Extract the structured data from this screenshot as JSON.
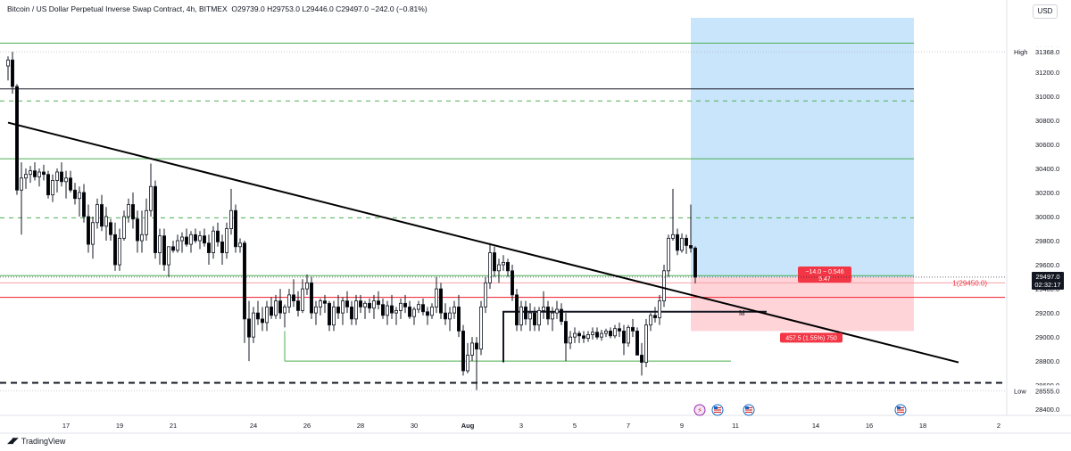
{
  "header": {
    "symbol": "Bitcoin / US Dollar Perpetual Inverse Swap Contract",
    "interval": "4h",
    "exchange": "BITMEX",
    "ohlc": "O29739.0  H29753.0  L29446.0  C29497.0  −242.0 (−0.81%)"
  },
  "currency_button": "USD",
  "branding": "TradingView",
  "colors": {
    "up_candle": "#ffffff",
    "down_candle": "#000000",
    "green_level": "#4caf50",
    "red_level": "#f23645",
    "target_zone": "#bbdefb",
    "stop_zone": "#ffcdd2",
    "trendline": "#000000"
  },
  "chart_data": {
    "type": "candlestick",
    "title": "Bitcoin / US Dollar Perpetual Inverse Swap Contract, 4h, BITMEX",
    "xlabel": "",
    "ylabel": "USD",
    "ylim": [
      28350,
      31650
    ],
    "y_ticks": [
      "31400.0",
      "31200.0",
      "31000.0",
      "30800.0",
      "30600.0",
      "30400.0",
      "30200.0",
      "30000.0",
      "29800.0",
      "29600.0",
      "29400.0",
      "29200.0",
      "29000.0",
      "28800.0",
      "28600.0",
      "28400.0"
    ],
    "x_labels": [
      {
        "label": "17",
        "bar": 13
      },
      {
        "label": "19",
        "bar": 25
      },
      {
        "label": "21",
        "bar": 37
      },
      {
        "label": "24",
        "bar": 55
      },
      {
        "label": "26",
        "bar": 67
      },
      {
        "label": "28",
        "bar": 79
      },
      {
        "label": "30",
        "bar": 91
      },
      {
        "label": "Aug",
        "bar": 103
      },
      {
        "label": "3",
        "bar": 115
      },
      {
        "label": "5",
        "bar": 127
      },
      {
        "label": "7",
        "bar": 139
      },
      {
        "label": "9",
        "bar": 151
      },
      {
        "label": "11",
        "bar": 163
      },
      {
        "label": "14",
        "bar": 181
      },
      {
        "label": "16",
        "bar": 193
      },
      {
        "label": "18",
        "bar": 205
      },
      {
        "label": "2",
        "bar": 222
      }
    ],
    "candles": [
      [
        31250,
        31330,
        31130,
        31300
      ],
      [
        31300,
        31368,
        31020,
        31080
      ],
      [
        31080,
        31100,
        30180,
        30220
      ],
      [
        30220,
        30450,
        29850,
        30320
      ],
      [
        30320,
        30400,
        30230,
        30350
      ],
      [
        30350,
        30420,
        30280,
        30380
      ],
      [
        30380,
        30450,
        30300,
        30330
      ],
      [
        30330,
        30400,
        30250,
        30370
      ],
      [
        30370,
        30430,
        30300,
        30350
      ],
      [
        30350,
        30380,
        30150,
        30180
      ],
      [
        30180,
        30350,
        30120,
        30300
      ],
      [
        30300,
        30400,
        30200,
        30370
      ],
      [
        30370,
        30450,
        30250,
        30290
      ],
      [
        30290,
        30380,
        30150,
        30320
      ],
      [
        30320,
        30380,
        30200,
        30220
      ],
      [
        30220,
        30280,
        30100,
        30150
      ],
      [
        30150,
        30250,
        30000,
        30200
      ],
      [
        30200,
        30270,
        29950,
        30000
      ],
      [
        30000,
        30100,
        29700,
        29770
      ],
      [
        29770,
        30000,
        29650,
        29950
      ],
      [
        29950,
        30150,
        29900,
        30100
      ],
      [
        30100,
        30180,
        29880,
        29920
      ],
      [
        29920,
        30080,
        29800,
        30000
      ],
      [
        29950,
        29980,
        29800,
        29850
      ],
      [
        29850,
        29950,
        29550,
        29600
      ],
      [
        29600,
        29900,
        29550,
        29820
      ],
      [
        29820,
        30050,
        29800,
        30000
      ],
      [
        30000,
        30150,
        29950,
        30100
      ],
      [
        30100,
        30200,
        29900,
        29980
      ],
      [
        29980,
        30050,
        29700,
        29800
      ],
      [
        29800,
        30050,
        29700,
        29850
      ],
      [
        29850,
        30150,
        29800,
        30050
      ],
      [
        30050,
        30440,
        30000,
        30250
      ],
      [
        30250,
        30300,
        29650,
        29700
      ],
      [
        29700,
        29900,
        29600,
        29840
      ],
      [
        29840,
        29900,
        29550,
        29600
      ],
      [
        29600,
        29750,
        29500,
        29750
      ],
      [
        29750,
        29800,
        29700,
        29720
      ],
      [
        29720,
        29850,
        29700,
        29800
      ],
      [
        29800,
        29870,
        29700,
        29830
      ],
      [
        29830,
        29900,
        29750,
        29770
      ],
      [
        29770,
        29880,
        29700,
        29850
      ],
      [
        29850,
        29900,
        29780,
        29800
      ],
      [
        29800,
        29880,
        29730,
        29840
      ],
      [
        29840,
        29900,
        29750,
        29780
      ],
      [
        29780,
        29850,
        29600,
        29700
      ],
      [
        29700,
        29920,
        29650,
        29880
      ],
      [
        29880,
        29950,
        29750,
        29790
      ],
      [
        29790,
        29850,
        29600,
        29700
      ],
      [
        29700,
        29950,
        29650,
        29900
      ],
      [
        29900,
        30230,
        29850,
        30050
      ],
      [
        30050,
        30100,
        29700,
        29750
      ],
      [
        29750,
        29820,
        29700,
        29780
      ],
      [
        29780,
        29800,
        28950,
        29150
      ],
      [
        29150,
        29300,
        28800,
        29000
      ],
      [
        29000,
        29250,
        28950,
        29200
      ],
      [
        29200,
        29300,
        29100,
        29150
      ],
      [
        29150,
        29250,
        29050,
        29120
      ],
      [
        29120,
        29300,
        29050,
        29250
      ],
      [
        29250,
        29330,
        29150,
        29180
      ],
      [
        29180,
        29350,
        29150,
        29300
      ],
      [
        29300,
        29400,
        29150,
        29200
      ],
      [
        29200,
        29270,
        29080,
        29250
      ],
      [
        29250,
        29400,
        29200,
        29350
      ],
      [
        29350,
        29480,
        29250,
        29300
      ],
      [
        29300,
        29380,
        29170,
        29220
      ],
      [
        29220,
        29480,
        29200,
        29400
      ],
      [
        29400,
        29520,
        29350,
        29450
      ],
      [
        29450,
        29500,
        29150,
        29200
      ],
      [
        29200,
        29300,
        29100,
        29250
      ],
      [
        29250,
        29320,
        29180,
        29300
      ],
      [
        29300,
        29350,
        29200,
        29280
      ],
      [
        29280,
        29300,
        29050,
        29100
      ],
      [
        29100,
        29300,
        29050,
        29250
      ],
      [
        29250,
        29350,
        29150,
        29200
      ],
      [
        29200,
        29330,
        29100,
        29300
      ],
      [
        29300,
        29380,
        29200,
        29250
      ],
      [
        29250,
        29300,
        29100,
        29150
      ],
      [
        29150,
        29350,
        29100,
        29300
      ],
      [
        29300,
        29350,
        29200,
        29250
      ],
      [
        29250,
        29300,
        29150,
        29280
      ],
      [
        29280,
        29320,
        29200,
        29240
      ],
      [
        29240,
        29350,
        29150,
        29300
      ],
      [
        29300,
        29380,
        29230,
        29270
      ],
      [
        29270,
        29320,
        29150,
        29180
      ],
      [
        29180,
        29300,
        29100,
        29260
      ],
      [
        29260,
        29350,
        29150,
        29200
      ],
      [
        29200,
        29250,
        29100,
        29220
      ],
      [
        29220,
        29320,
        29150,
        29280
      ],
      [
        29280,
        29350,
        29200,
        29250
      ],
      [
        29250,
        29300,
        29150,
        29170
      ],
      [
        29170,
        29250,
        29100,
        29230
      ],
      [
        29230,
        29300,
        29200,
        29270
      ],
      [
        29270,
        29320,
        29180,
        29210
      ],
      [
        29210,
        29250,
        29100,
        29180
      ],
      [
        29180,
        29280,
        29150,
        29250
      ],
      [
        29250,
        29500,
        29200,
        29400
      ],
      [
        29400,
        29450,
        29150,
        29200
      ],
      [
        29200,
        29280,
        29100,
        29150
      ],
      [
        29150,
        29250,
        29050,
        29200
      ],
      [
        29200,
        29300,
        29150,
        29250
      ],
      [
        29250,
        29350,
        29000,
        29050
      ],
      [
        29050,
        29100,
        28680,
        28720
      ],
      [
        28720,
        28950,
        28700,
        28850
      ],
      [
        28850,
        29000,
        28800,
        28950
      ],
      [
        28950,
        29000,
        28560,
        28900
      ],
      [
        28900,
        29300,
        28850,
        29250
      ],
      [
        29250,
        29500,
        29200,
        29450
      ],
      [
        29450,
        29780,
        29400,
        29700
      ],
      [
        29700,
        29750,
        29500,
        29550
      ],
      [
        29550,
        29650,
        29450,
        29600
      ],
      [
        29600,
        29680,
        29550,
        29620
      ],
      [
        29620,
        29650,
        29500,
        29550
      ],
      [
        29550,
        29600,
        29300,
        29350
      ],
      [
        29350,
        29400,
        29050,
        29100
      ],
      [
        29100,
        29300,
        29050,
        29250
      ],
      [
        29250,
        29300,
        29100,
        29150
      ],
      [
        29150,
        29280,
        29050,
        29200
      ],
      [
        29200,
        29250,
        29050,
        29100
      ],
      [
        29100,
        29250,
        29050,
        29220
      ],
      [
        29220,
        29380,
        29150,
        29250
      ],
      [
        29250,
        29300,
        29100,
        29150
      ],
      [
        29150,
        29250,
        29050,
        29200
      ],
      [
        29200,
        29300,
        29150,
        29230
      ],
      [
        29230,
        29280,
        29100,
        29130
      ],
      [
        29130,
        29200,
        28800,
        28950
      ],
      [
        28950,
        29050,
        28900,
        29000
      ],
      [
        29000,
        29080,
        28950,
        29030
      ],
      [
        29030,
        29050,
        28950,
        29010
      ],
      [
        29010,
        29050,
        28950,
        28990
      ],
      [
        28990,
        29050,
        28960,
        29020
      ],
      [
        29020,
        29080,
        28980,
        29040
      ],
      [
        29040,
        29080,
        28980,
        29000
      ],
      [
        29000,
        29060,
        28970,
        29030
      ],
      [
        29030,
        29070,
        29000,
        29050
      ],
      [
        29050,
        29080,
        28990,
        29010
      ],
      [
        29010,
        29100,
        28990,
        29070
      ],
      [
        29070,
        29120,
        29000,
        29050
      ],
      [
        29050,
        29100,
        28850,
        28950
      ],
      [
        28950,
        29100,
        28920,
        29080
      ],
      [
        29080,
        29150,
        29000,
        29050
      ],
      [
        29050,
        29080,
        28850,
        28850
      ],
      [
        28850,
        28950,
        28680,
        28790
      ],
      [
        28790,
        29150,
        28750,
        29100
      ],
      [
        29100,
        29200,
        29050,
        29180
      ],
      [
        29180,
        29250,
        29120,
        29160
      ],
      [
        29160,
        29350,
        29100,
        29300
      ],
      [
        29300,
        29600,
        29250,
        29550
      ],
      [
        29550,
        29850,
        29500,
        29820
      ],
      [
        29820,
        30230,
        29800,
        29850
      ],
      [
        29850,
        29900,
        29680,
        29720
      ],
      [
        29720,
        29860,
        29700,
        29820
      ],
      [
        29820,
        29850,
        29690,
        29760
      ],
      [
        29760,
        30100,
        29700,
        29739
      ],
      [
        29739,
        29753,
        29446,
        29497
      ]
    ],
    "levels": [
      {
        "name": "resistance",
        "style": "solid green",
        "price": 31440
      },
      {
        "name": "high-zone",
        "style": "solid black",
        "price": 31060
      },
      {
        "name": "resistance-dashed",
        "style": "dashed green",
        "price": 30960
      },
      {
        "name": "resistance-mid",
        "style": "solid green",
        "price": 30480
      },
      {
        "name": "mid-dashed",
        "style": "dashed green",
        "price": 29990
      },
      {
        "name": "entry",
        "style": "solid green",
        "price": 29510
      },
      {
        "name": "limit-order",
        "style": "solid pink",
        "price": 29450
      },
      {
        "name": "stop-line",
        "style": "solid red",
        "price": 29330
      },
      {
        "name": "support-box",
        "style": "solid green",
        "price": 28800
      },
      {
        "name": "bottom-dashed",
        "style": "dashed black",
        "price": 28620
      }
    ],
    "trendline": {
      "from": {
        "bar": 0,
        "price": 30780
      },
      "to": {
        "bar": 213,
        "price": 28790
      }
    },
    "range_box": {
      "from_bar": 111,
      "to_bar": 144,
      "price_top": 29210,
      "price_low": 28790
    },
    "position": {
      "from_bar": 153,
      "to_bar": 203,
      "entry": 29497,
      "target": 31650,
      "stop": 29050
    },
    "markers": [
      {
        "label": "M",
        "bar": 163,
        "price": 29200
      }
    ],
    "price_labels": {
      "high": {
        "label": "High",
        "value": "31368.0"
      },
      "low": {
        "label": "Low",
        "value": "28555.0"
      },
      "current": {
        "value": "29497.0",
        "countdown": "02:32:17"
      },
      "order": "1(29450.0)",
      "position_top": "−14.0 − 0.546",
      "position_bottom": "5.47",
      "stop_label": "457.5 (1.55%) 750"
    },
    "event_icons": [
      {
        "kind": "bolt",
        "bar": 155
      },
      {
        "kind": "us-flag",
        "bar": 159
      },
      {
        "kind": "us-flag",
        "bar": 166
      },
      {
        "kind": "us-flag",
        "bar": 200
      }
    ]
  }
}
